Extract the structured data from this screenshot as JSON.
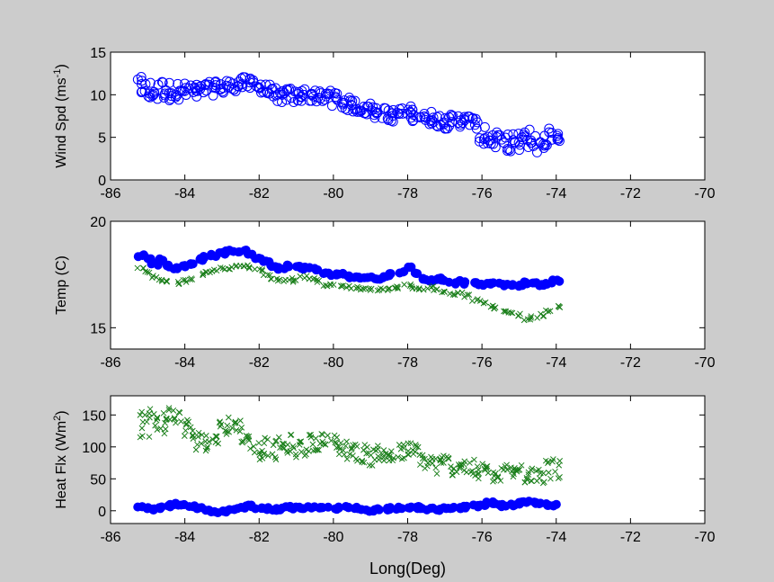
{
  "figure": {
    "background": "#cccccc",
    "axes_background": "#ffffff",
    "xlabel": "Long(Deg)"
  },
  "colors": {
    "blue": "#0000ff",
    "green": "#1a7f1a"
  },
  "chart_data": [
    {
      "type": "scatter",
      "ylabel": "Wind Spd (ms",
      "ylabel_sup": "-1",
      "ylabel_end": ")",
      "xlim": [
        -86,
        -70
      ],
      "ylim": [
        0,
        15
      ],
      "xticks": [
        -86,
        -84,
        -82,
        -80,
        -78,
        -76,
        -74,
        -72,
        -70
      ],
      "yticks": [
        0,
        5,
        10,
        15
      ],
      "series": [
        {
          "marker": "circle",
          "color": "#0000ff",
          "x": [
            -85.2,
            -85.0,
            -84.8,
            -84.6,
            -84.4,
            -84.2,
            -84.0,
            -83.8,
            -83.6,
            -83.4,
            -83.2,
            -83.0,
            -82.8,
            -82.6,
            -82.4,
            -82.2,
            -82.0,
            -81.8,
            -81.6,
            -81.4,
            -81.2,
            -81.0,
            -80.8,
            -80.6,
            -80.4,
            -80.2,
            -80.0,
            -79.8,
            -79.6,
            -79.4,
            -79.2,
            -79.0,
            -78.8,
            -78.6,
            -78.4,
            -78.2,
            -78.0,
            -77.8,
            -77.6,
            -77.4,
            -77.2,
            -77.0,
            -76.8,
            -76.6,
            -76.4,
            -76.2,
            -76.0,
            -75.8,
            -75.6,
            -75.4,
            -75.2,
            -75.0,
            -74.8,
            -74.6,
            -74.4,
            -74.2,
            -74.0
          ],
          "y": [
            10.8,
            10.5,
            10.3,
            10.6,
            10.4,
            10.5,
            10.4,
            10.5,
            10.3,
            10.6,
            10.8,
            10.9,
            11.0,
            11.2,
            11.3,
            11.4,
            11.0,
            10.5,
            10.0,
            9.8,
            10.0,
            9.8,
            10.0,
            9.9,
            9.7,
            9.8,
            9.6,
            9.1,
            8.9,
            8.7,
            8.5,
            8.3,
            8.0,
            7.7,
            7.6,
            7.8,
            7.9,
            7.7,
            7.5,
            7.3,
            7.0,
            6.8,
            6.9,
            7.0,
            6.9,
            6.6,
            5.2,
            4.8,
            4.6,
            4.4,
            4.0,
            4.4,
            4.9,
            4.3,
            4.6,
            5.0,
            5.2
          ],
          "spread": [
            1.3,
            1.3,
            1.2,
            1.2,
            1.1,
            1.1,
            1.0,
            1.0,
            1.0,
            0.9,
            0.9,
            0.9,
            0.8,
            0.8,
            0.8,
            0.8,
            0.8,
            0.8,
            0.8,
            0.8,
            0.8,
            0.8,
            0.8,
            0.8,
            0.8,
            0.8,
            0.9,
            0.8,
            0.8,
            0.8,
            0.8,
            0.8,
            0.8,
            0.8,
            0.8,
            0.8,
            0.8,
            0.8,
            0.8,
            0.8,
            0.8,
            0.8,
            0.8,
            0.8,
            0.8,
            0.8,
            1.0,
            1.0,
            1.0,
            1.0,
            1.5,
            1.3,
            1.2,
            1.2,
            1.1,
            1.1,
            1.1
          ]
        }
      ]
    },
    {
      "type": "scatter",
      "ylabel": "Temp (C)",
      "xlim": [
        -86,
        -70
      ],
      "ylim": [
        14,
        20
      ],
      "xticks": [
        -86,
        -84,
        -82,
        -80,
        -78,
        -76,
        -74,
        -72,
        -70
      ],
      "yticks": [
        15,
        20
      ],
      "series": [
        {
          "marker": "circle-filled",
          "color": "#0000ff",
          "x": [
            -85.2,
            -85.0,
            -84.8,
            -84.6,
            -84.4,
            -84.2,
            -84.0,
            -83.8,
            -83.6,
            -83.4,
            -83.2,
            -83.0,
            -82.8,
            -82.6,
            -82.4,
            -82.2,
            -82.0,
            -81.8,
            -81.6,
            -81.4,
            -81.2,
            -81.0,
            -80.8,
            -80.6,
            -80.4,
            -80.2,
            -80.0,
            -79.8,
            -79.6,
            -79.4,
            -79.2,
            -79.0,
            -78.8,
            -78.6,
            -78.4,
            -78.2,
            -78.0,
            -77.8,
            -77.6,
            -77.4,
            -77.2,
            -77.0,
            -76.8,
            -76.6,
            -76.4,
            -76.2,
            -76.0,
            -75.8,
            -75.6,
            -75.4,
            -75.2,
            -75.0,
            -74.8,
            -74.6,
            -74.4,
            -74.2,
            -74.0
          ],
          "y": [
            18.4,
            18.2,
            18.0,
            18.2,
            17.9,
            17.8,
            17.9,
            18.0,
            18.2,
            18.3,
            18.4,
            18.5,
            18.6,
            18.6,
            18.6,
            18.5,
            18.3,
            18.1,
            17.9,
            17.8,
            17.9,
            17.9,
            17.8,
            17.8,
            17.7,
            17.6,
            17.5,
            17.5,
            17.4,
            17.4,
            17.3,
            17.4,
            17.3,
            17.4,
            17.5,
            17.6,
            17.8,
            17.6,
            17.3,
            17.2,
            17.3,
            17.2,
            17.1,
            17.2,
            17.1,
            17.1,
            17.0,
            17.1,
            17.1,
            17.0,
            17.0,
            17.0,
            17.1,
            17.1,
            17.0,
            17.1,
            17.2
          ]
        },
        {
          "marker": "x",
          "color": "#1a7f1a",
          "x": [
            -85.2,
            -85.0,
            -84.8,
            -84.6,
            -84.4,
            -84.2,
            -84.0,
            -83.8,
            -83.6,
            -83.4,
            -83.2,
            -83.0,
            -82.8,
            -82.6,
            -82.4,
            -82.2,
            -82.0,
            -81.8,
            -81.6,
            -81.4,
            -81.2,
            -81.0,
            -80.8,
            -80.6,
            -80.4,
            -80.2,
            -80.0,
            -79.8,
            -79.6,
            -79.4,
            -79.2,
            -79.0,
            -78.8,
            -78.6,
            -78.4,
            -78.2,
            -78.0,
            -77.8,
            -77.6,
            -77.4,
            -77.2,
            -77.0,
            -76.8,
            -76.6,
            -76.4,
            -76.2,
            -76.0,
            -75.8,
            -75.6,
            -75.4,
            -75.2,
            -75.0,
            -74.8,
            -74.6,
            -74.4,
            -74.2,
            -74.0
          ],
          "y": [
            17.8,
            17.6,
            17.4,
            17.2,
            17.2,
            17.1,
            17.2,
            17.3,
            17.5,
            17.6,
            17.7,
            17.8,
            17.8,
            17.9,
            17.9,
            17.8,
            17.7,
            17.5,
            17.3,
            17.2,
            17.3,
            17.2,
            17.4,
            17.3,
            17.2,
            17.0,
            17.0,
            17.0,
            16.9,
            16.9,
            16.8,
            16.8,
            16.8,
            16.8,
            16.9,
            16.9,
            17.0,
            16.9,
            16.8,
            16.9,
            16.8,
            16.7,
            16.6,
            16.6,
            16.5,
            16.3,
            16.2,
            16.0,
            15.9,
            15.8,
            15.7,
            15.6,
            15.4,
            15.5,
            15.6,
            15.8,
            16.0
          ]
        }
      ]
    },
    {
      "type": "scatter",
      "ylabel": "Heat Flx (Wm",
      "ylabel_sup": "2",
      "ylabel_end": ")",
      "xlim": [
        -86,
        -70
      ],
      "ylim": [
        -20,
        180
      ],
      "xticks": [
        -86,
        -84,
        -82,
        -80,
        -78,
        -76,
        -74,
        -72,
        -70
      ],
      "yticks": [
        0,
        50,
        100,
        150
      ],
      "series": [
        {
          "marker": "x",
          "color": "#1a7f1a",
          "x": [
            -85.2,
            -85.0,
            -84.8,
            -84.6,
            -84.4,
            -84.2,
            -84.0,
            -83.8,
            -83.6,
            -83.4,
            -83.2,
            -83.0,
            -82.8,
            -82.6,
            -82.4,
            -82.2,
            -82.0,
            -81.8,
            -81.6,
            -81.4,
            -81.2,
            -81.0,
            -80.8,
            -80.6,
            -80.4,
            -80.2,
            -80.0,
            -79.8,
            -79.6,
            -79.4,
            -79.2,
            -79.0,
            -78.8,
            -78.6,
            -78.4,
            -78.2,
            -78.0,
            -77.8,
            -77.6,
            -77.4,
            -77.2,
            -77.0,
            -76.8,
            -76.6,
            -76.4,
            -76.2,
            -76.0,
            -75.8,
            -75.6,
            -75.4,
            -75.2,
            -75.0,
            -74.8,
            -74.6,
            -74.4,
            -74.2,
            -74.0
          ],
          "y": [
            145,
            140,
            135,
            140,
            150,
            145,
            130,
            120,
            110,
            105,
            120,
            130,
            135,
            130,
            120,
            105,
            95,
            100,
            95,
            100,
            105,
            95,
            100,
            105,
            110,
            108,
            105,
            100,
            95,
            92,
            90,
            85,
            90,
            88,
            85,
            90,
            95,
            90,
            80,
            75,
            70,
            75,
            70,
            72,
            68,
            65,
            60,
            58,
            55,
            58,
            62,
            60,
            65,
            62,
            60,
            65,
            68
          ],
          "spread": [
            30,
            25,
            20,
            20,
            15,
            15,
            15,
            15,
            15,
            15,
            15,
            15,
            15,
            15,
            15,
            15,
            15,
            15,
            15,
            15,
            15,
            15,
            15,
            15,
            15,
            15,
            15,
            15,
            15,
            15,
            15,
            15,
            15,
            15,
            15,
            15,
            15,
            15,
            15,
            15,
            15,
            15,
            15,
            15,
            15,
            15,
            15,
            15,
            15,
            15,
            15,
            15,
            25,
            20,
            18,
            18,
            18
          ]
        },
        {
          "marker": "circle-filled",
          "color": "#0000ff",
          "x": [
            -85.2,
            -85.0,
            -84.8,
            -84.6,
            -84.4,
            -84.2,
            -84.0,
            -83.8,
            -83.6,
            -83.4,
            -83.2,
            -83.0,
            -82.8,
            -82.6,
            -82.4,
            -82.2,
            -82.0,
            -81.8,
            -81.6,
            -81.4,
            -81.2,
            -81.0,
            -80.8,
            -80.6,
            -80.4,
            -80.2,
            -80.0,
            -79.8,
            -79.6,
            -79.4,
            -79.2,
            -79.0,
            -78.8,
            -78.6,
            -78.4,
            -78.2,
            -78.0,
            -77.8,
            -77.6,
            -77.4,
            -77.2,
            -77.0,
            -76.8,
            -76.6,
            -76.4,
            -76.2,
            -76.0,
            -75.8,
            -75.6,
            -75.4,
            -75.2,
            -75.0,
            -74.8,
            -74.6,
            -74.4,
            -74.2,
            -74.0
          ],
          "y": [
            5,
            3,
            2,
            5,
            8,
            10,
            9,
            6,
            3,
            0,
            -2,
            -2,
            0,
            3,
            6,
            7,
            5,
            3,
            2,
            3,
            5,
            4,
            3,
            5,
            6,
            4,
            3,
            4,
            5,
            4,
            2,
            1,
            2,
            3,
            4,
            5,
            6,
            5,
            4,
            3,
            2,
            3,
            4,
            5,
            6,
            8,
            10,
            12,
            10,
            8,
            9,
            12,
            14,
            12,
            10,
            9,
            8
          ]
        }
      ]
    }
  ]
}
